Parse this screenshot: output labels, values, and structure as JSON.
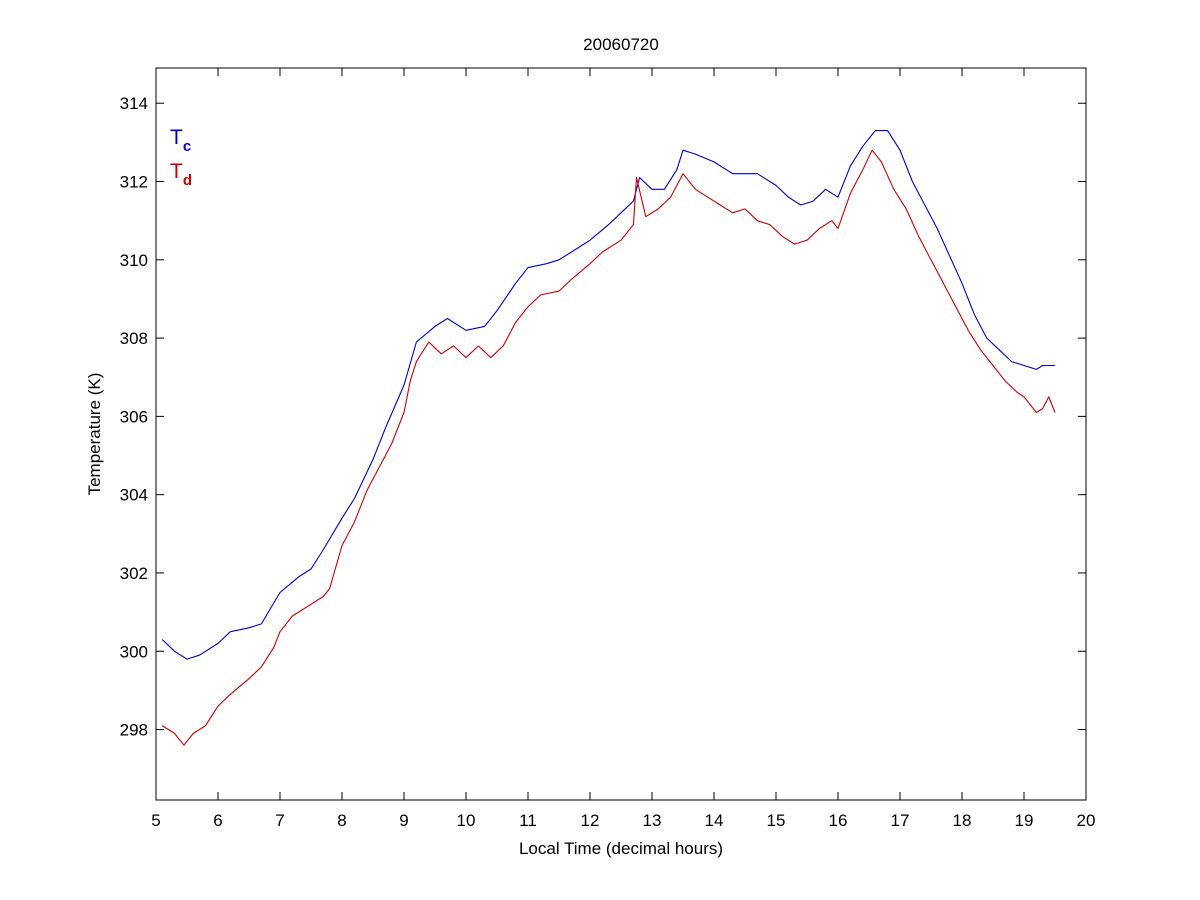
{
  "chart_data": {
    "type": "line",
    "title": "20060720",
    "xlabel": "Local Time (decimal hours)",
    "ylabel": "Temperature (K)",
    "xlim": [
      5,
      20
    ],
    "ylim": [
      296.2,
      314.9
    ],
    "xticks": [
      5,
      6,
      7,
      8,
      9,
      10,
      11,
      12,
      13,
      14,
      15,
      16,
      17,
      18,
      19,
      20
    ],
    "yticks": [
      298,
      300,
      302,
      304,
      306,
      308,
      310,
      312,
      314
    ],
    "grid": false,
    "legend_position": "top-left",
    "series": [
      {
        "name": "Tc",
        "legend_main": "T",
        "legend_sub": "c",
        "color": "#0000cc",
        "x": [
          5.1,
          5.3,
          5.5,
          5.7,
          6.0,
          6.2,
          6.5,
          6.7,
          7.0,
          7.3,
          7.5,
          7.7,
          8.0,
          8.2,
          8.5,
          8.7,
          9.0,
          9.2,
          9.5,
          9.7,
          10.0,
          10.3,
          10.5,
          10.8,
          11.0,
          11.3,
          11.5,
          11.8,
          12.0,
          12.3,
          12.5,
          12.7,
          12.8,
          13.0,
          13.2,
          13.4,
          13.5,
          13.7,
          14.0,
          14.3,
          14.5,
          14.7,
          15.0,
          15.2,
          15.4,
          15.6,
          15.8,
          16.0,
          16.2,
          16.4,
          16.6,
          16.8,
          17.0,
          17.2,
          17.4,
          17.6,
          17.8,
          18.0,
          18.2,
          18.4,
          18.6,
          18.8,
          19.0,
          19.2,
          19.3,
          19.5
        ],
        "y": [
          300.3,
          300.0,
          299.8,
          299.9,
          300.2,
          300.5,
          300.6,
          300.7,
          301.5,
          301.9,
          302.1,
          302.6,
          303.4,
          303.9,
          304.9,
          305.7,
          306.8,
          307.9,
          308.3,
          308.5,
          308.2,
          308.3,
          308.7,
          309.4,
          309.8,
          309.9,
          310.0,
          310.3,
          310.5,
          310.9,
          311.2,
          311.5,
          312.1,
          311.8,
          311.8,
          312.3,
          312.8,
          312.7,
          312.5,
          312.2,
          312.2,
          312.2,
          311.9,
          311.6,
          311.4,
          311.5,
          311.8,
          311.6,
          312.4,
          312.9,
          313.3,
          313.3,
          312.8,
          312.0,
          311.4,
          310.8,
          310.1,
          309.4,
          308.6,
          308.0,
          307.7,
          307.4,
          307.3,
          307.2,
          307.3,
          307.3
        ]
      },
      {
        "name": "Td",
        "legend_main": "T",
        "legend_sub": "d",
        "color": "#cc0000",
        "x": [
          5.1,
          5.3,
          5.45,
          5.6,
          5.8,
          6.0,
          6.2,
          6.5,
          6.7,
          6.9,
          7.0,
          7.2,
          7.5,
          7.7,
          7.8,
          8.0,
          8.2,
          8.4,
          8.6,
          8.8,
          9.0,
          9.1,
          9.2,
          9.4,
          9.6,
          9.8,
          10.0,
          10.2,
          10.4,
          10.6,
          10.8,
          11.0,
          11.2,
          11.5,
          11.7,
          12.0,
          12.2,
          12.5,
          12.7,
          12.75,
          12.9,
          13.1,
          13.3,
          13.5,
          13.7,
          13.9,
          14.1,
          14.3,
          14.5,
          14.7,
          14.9,
          15.1,
          15.3,
          15.5,
          15.7,
          15.9,
          16.0,
          16.2,
          16.4,
          16.55,
          16.7,
          16.9,
          17.1,
          17.3,
          17.5,
          17.7,
          17.9,
          18.1,
          18.3,
          18.5,
          18.7,
          18.9,
          19.0,
          19.2,
          19.3,
          19.4,
          19.5
        ],
        "y": [
          298.1,
          297.9,
          297.6,
          297.9,
          298.1,
          298.6,
          298.9,
          299.3,
          299.6,
          300.1,
          300.5,
          300.9,
          301.2,
          301.4,
          301.6,
          302.7,
          303.3,
          304.1,
          304.7,
          305.3,
          306.1,
          306.9,
          307.4,
          307.9,
          307.6,
          307.8,
          307.5,
          307.8,
          307.5,
          307.8,
          308.4,
          308.8,
          309.1,
          309.2,
          309.5,
          309.9,
          310.2,
          310.5,
          310.9,
          312.1,
          311.1,
          311.3,
          311.6,
          312.2,
          311.8,
          311.6,
          311.4,
          311.2,
          311.3,
          311.0,
          310.9,
          310.6,
          310.4,
          310.5,
          310.8,
          311.0,
          310.8,
          311.7,
          312.3,
          312.8,
          312.5,
          311.8,
          311.3,
          310.6,
          310.0,
          309.4,
          308.8,
          308.2,
          307.7,
          307.3,
          306.9,
          306.6,
          306.5,
          306.1,
          306.2,
          306.5,
          306.1
        ]
      }
    ]
  }
}
